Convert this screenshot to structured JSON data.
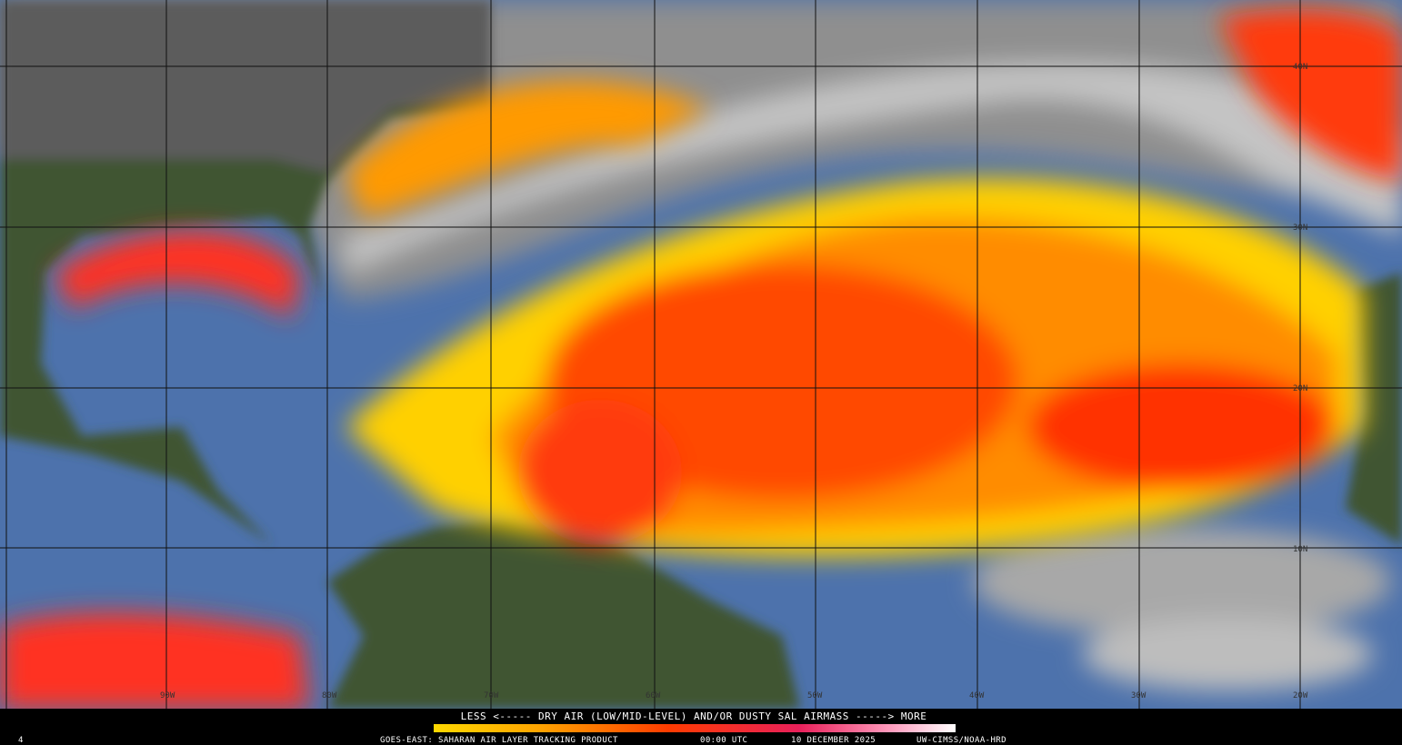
{
  "legend": {
    "caption": "LESS <----- DRY AIR (LOW/MID-LEVEL) AND/OR DUSTY SAL AIRMASS -----> MORE"
  },
  "footer": {
    "frame": "4",
    "product": "GOES-EAST: SAHARAN AIR LAYER TRACKING PRODUCT",
    "time": "00:00 UTC",
    "date": "10 DECEMBER 2025",
    "credit": "UW-CIMSS/NOAA-HRD"
  },
  "map": {
    "latitude_labels": [
      "40N",
      "30N",
      "20N",
      "10N"
    ],
    "longitude_labels": [
      "90W",
      "80W",
      "70W",
      "60W",
      "50W",
      "40W",
      "30W",
      "20W"
    ]
  }
}
